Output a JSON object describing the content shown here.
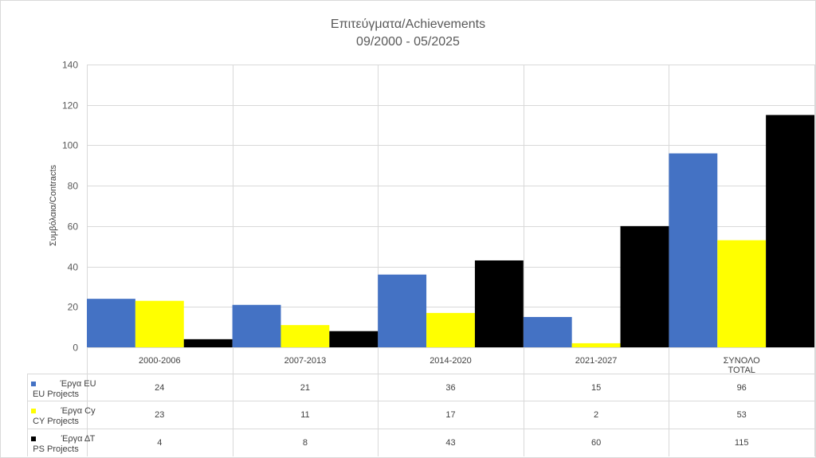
{
  "chart_data": {
    "type": "bar",
    "title": "Επιτεύγματα/Achievements",
    "subtitle": "09/2000 - 05/2025",
    "ylabel": "Συμβόλαια/Contracts",
    "xlabel": "",
    "ylim": [
      0,
      140
    ],
    "ytick_step": 20,
    "grid": true,
    "legend": "data-table-left",
    "categories": [
      [
        "2000-2006"
      ],
      [
        "2007-2013"
      ],
      [
        "2014-2020"
      ],
      [
        "2021-2027"
      ],
      [
        "ΣΥΝΟΛΟ",
        "TOTAL"
      ]
    ],
    "series": [
      {
        "name": [
          "Έργα EU",
          "EU Projects"
        ],
        "color": "#4472c4",
        "values": [
          24,
          21,
          36,
          15,
          96
        ]
      },
      {
        "name": [
          "Έργα Cy",
          "CY Projects"
        ],
        "color": "#ffff00",
        "values": [
          23,
          11,
          17,
          2,
          53
        ]
      },
      {
        "name": [
          "Έργα ΔΤ",
          "PS Projects"
        ],
        "color": "#000000",
        "values": [
          4,
          8,
          43,
          60,
          115
        ]
      }
    ]
  },
  "colors": {
    "grid": "#d9d9d9",
    "text": "#404040"
  }
}
